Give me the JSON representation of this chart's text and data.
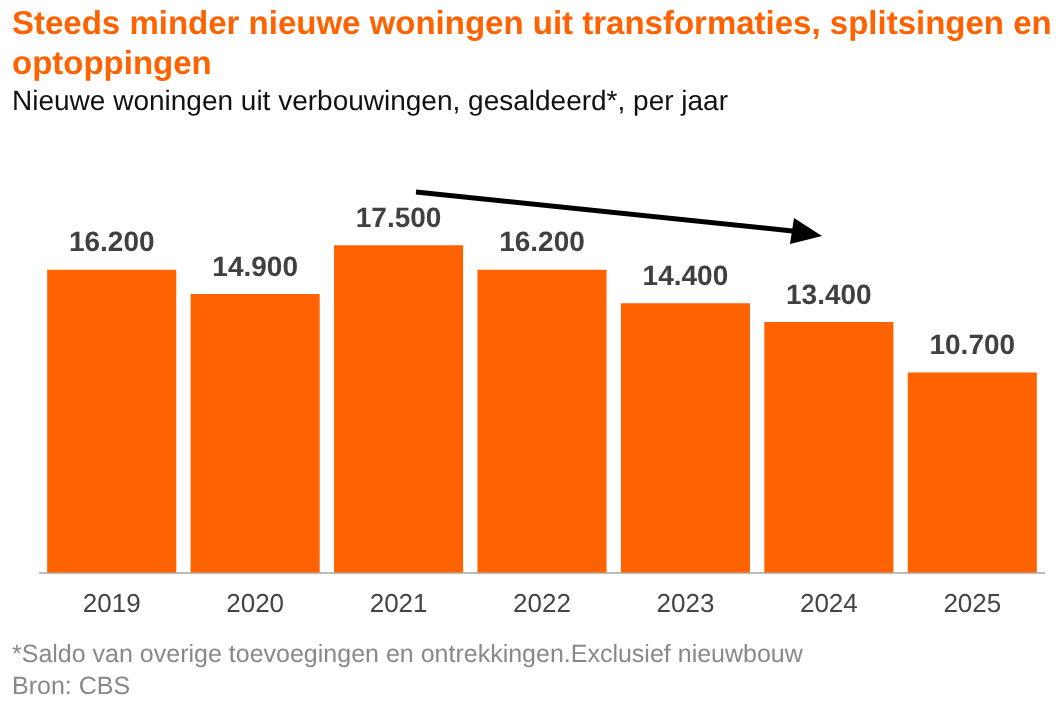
{
  "chart_data": {
    "type": "bar",
    "title": "Steeds minder nieuwe woningen uit transformaties, splitsingen en optoppingen",
    "subtitle": "Nieuwe woningen uit verbouwingen, gesaldeerd*, per jaar",
    "categories": [
      "2019",
      "2020",
      "2021",
      "2022",
      "2023",
      "2024",
      "2025"
    ],
    "values": [
      16200,
      14900,
      17500,
      16200,
      14400,
      13400,
      10700
    ],
    "value_labels": [
      "16.200",
      "14.900",
      "17.500",
      "16.200",
      "14.400",
      "13.400",
      "10.700"
    ],
    "color": "#ff6200",
    "grid": false,
    "legend": false,
    "tick_labels": "x",
    "annotations": [
      "*Saldo van overige toevoegingen en ontrekkingen.Exclusief nieuwbouw",
      "Bron: CBS"
    ]
  }
}
